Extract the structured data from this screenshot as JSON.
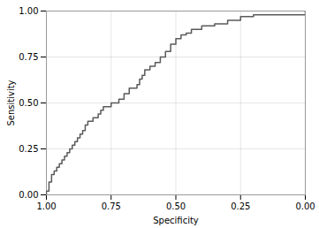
{
  "chart_data": {
    "type": "step",
    "xlabel": "Specificity",
    "ylabel": "Sensitivity",
    "color": "#5a5a5a",
    "xlim": [
      1.0,
      0.0
    ],
    "ylim": [
      0.0,
      1.0
    ],
    "xticks": [
      {
        "value": 1.0,
        "label": "1.00"
      },
      0.75,
      {
        "value": 0.5,
        "label": "0.50"
      },
      0.25,
      {
        "value": 0.0,
        "label": "0.00"
      }
    ],
    "yticks": [
      {
        "value": 0.0,
        "label": "0.00"
      },
      0.25,
      {
        "value": 0.5,
        "label": "0.50"
      },
      0.75,
      {
        "value": 1.0,
        "label": "1.00"
      }
    ],
    "grid": true,
    "x": [
      1.0,
      1.0,
      0.99,
      0.99,
      0.99,
      0.98,
      0.98,
      0.98,
      0.97,
      0.97,
      0.96,
      0.96,
      0.95,
      0.95,
      0.94,
      0.94,
      0.93,
      0.93,
      0.92,
      0.92,
      0.91,
      0.91,
      0.9,
      0.9,
      0.89,
      0.89,
      0.88,
      0.88,
      0.87,
      0.87,
      0.86,
      0.86,
      0.85,
      0.85,
      0.84,
      0.84,
      0.83,
      0.82,
      0.82,
      0.81,
      0.8,
      0.8,
      0.79,
      0.79,
      0.78,
      0.78,
      0.77,
      0.76,
      0.75,
      0.75,
      0.74,
      0.73,
      0.72,
      0.71,
      0.7,
      0.7,
      0.69,
      0.68,
      0.67,
      0.65,
      0.64,
      0.63,
      0.62,
      0.6,
      0.58,
      0.56,
      0.54,
      0.52,
      0.5,
      0.48,
      0.46,
      0.44,
      0.4,
      0.35,
      0.3,
      0.25,
      0.2,
      0.0
    ],
    "values": [
      0.0,
      0.02,
      0.02,
      0.05,
      0.07,
      0.07,
      0.09,
      0.11,
      0.11,
      0.13,
      0.13,
      0.15,
      0.15,
      0.17,
      0.17,
      0.19,
      0.19,
      0.21,
      0.21,
      0.23,
      0.23,
      0.25,
      0.25,
      0.27,
      0.27,
      0.29,
      0.29,
      0.31,
      0.31,
      0.33,
      0.33,
      0.35,
      0.35,
      0.38,
      0.38,
      0.4,
      0.4,
      0.4,
      0.42,
      0.42,
      0.42,
      0.44,
      0.44,
      0.46,
      0.46,
      0.48,
      0.48,
      0.48,
      0.48,
      0.5,
      0.5,
      0.5,
      0.52,
      0.52,
      0.52,
      0.55,
      0.55,
      0.58,
      0.58,
      0.6,
      0.63,
      0.65,
      0.68,
      0.7,
      0.72,
      0.75,
      0.78,
      0.82,
      0.85,
      0.87,
      0.88,
      0.9,
      0.92,
      0.93,
      0.95,
      0.97,
      0.98,
      1.0
    ]
  }
}
